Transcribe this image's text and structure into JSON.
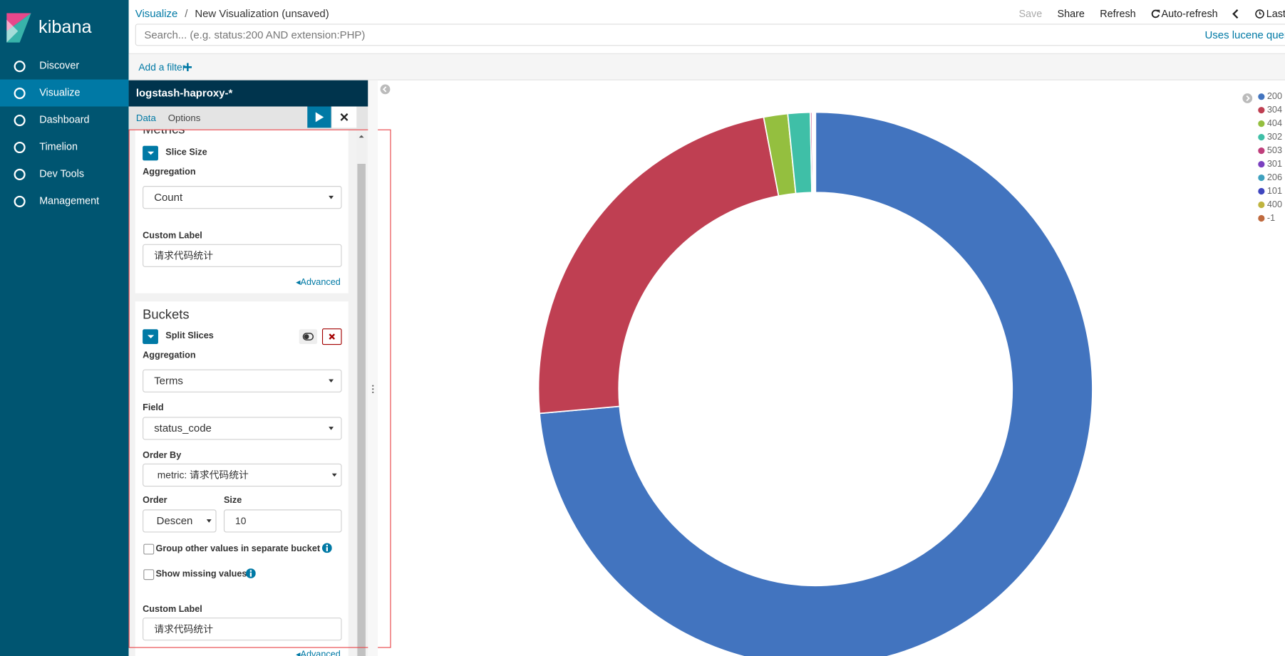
{
  "nav": {
    "brand": "kibana",
    "items": [
      "Discover",
      "Visualize",
      "Dashboard",
      "Timelion",
      "Dev Tools",
      "Management"
    ],
    "active": 1
  },
  "header": {
    "breadcrumb": [
      "Visualize",
      "New Visualization (unsaved)"
    ],
    "separator": "/",
    "actions": [
      "Save",
      "Share",
      "Refresh",
      "Auto-refresh",
      "Last"
    ],
    "search_placeholder": "Search... (e.g. status:200 AND extension:PHP)",
    "query_syntax": "Uses lucene query syntax"
  },
  "filter_bar": {
    "add_filter": "Add a filter"
  },
  "editor": {
    "index_pattern": "logstash-haproxy-*",
    "tabs": [
      "Data",
      "Options"
    ],
    "metrics": {
      "heading": "Metrics",
      "agg_title": "Slice Size",
      "aggregation_label": "Aggregation",
      "aggregation": "Count",
      "custom_label_label": "Custom Label",
      "custom_label": "请求代码统计",
      "advanced": "Advanced"
    },
    "buckets": {
      "heading": "Buckets",
      "agg_title": "Split Slices",
      "aggregation_label": "Aggregation",
      "aggregation": "Terms",
      "field_label": "Field",
      "field": "status_code",
      "order_by_label": "Order By",
      "order_by": "metric: 请求代码统计",
      "order_label": "Order",
      "order": "Descending",
      "size_label": "Size",
      "size": "10",
      "group_other": "Group other values in separate bucket",
      "show_missing": "Show missing values",
      "custom_label_label": "Custom Label",
      "custom_label": "请求代码统计",
      "advanced": "Advanced"
    }
  },
  "chart_data": {
    "type": "pie",
    "donut": true,
    "legend": "top-right",
    "categories": [
      "200",
      "304",
      "404",
      "302",
      "503",
      "301",
      "206",
      "101",
      "400",
      "-1"
    ],
    "values": [
      73.6,
      23.4,
      1.4,
      1.3,
      0.1,
      0.05,
      0.05,
      0.04,
      0.03,
      0.03
    ],
    "colors": [
      "#4274bf",
      "#bf3f52",
      "#94bf3f",
      "#3fbfa7",
      "#bf3f7c",
      "#7a3fbf",
      "#3fa1bf",
      "#3f46bf",
      "#bfb43f",
      "#bf6a3f"
    ]
  }
}
